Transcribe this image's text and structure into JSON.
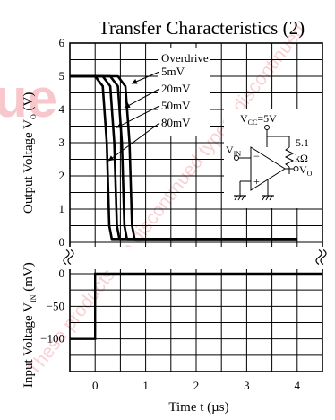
{
  "chart_data": {
    "type": "line",
    "title": "Transfer Characteristics (2)",
    "xlabel": "Time  t (µs)",
    "ylabel_output": "Output Voltage  V",
    "ylabel_output_sub": "O",
    "ylabel_output_unit": " (V)",
    "ylabel_input": "Input Voltage  V",
    "ylabel_input_sub": "IN",
    "ylabel_input_unit": " (mV)",
    "x_ticks": [
      "0",
      "1",
      "2",
      "3",
      "4"
    ],
    "y_output_ticks": [
      "6",
      "5",
      "4",
      "3",
      "2",
      "1",
      "0"
    ],
    "y_input_ticks": [
      "0",
      "−50",
      "−100"
    ],
    "xlim": [
      -0.5,
      4.5
    ],
    "ylim_output": [
      0,
      6
    ],
    "ylim_input": [
      -150,
      0
    ],
    "grid": true,
    "legend_title": "Overdrive",
    "series": [
      {
        "name": "5mV",
        "points": [
          [
            -0.5,
            5
          ],
          [
            0.45,
            5
          ],
          [
            0.6,
            4.7
          ],
          [
            0.68,
            3.0
          ],
          [
            0.73,
            0.5
          ],
          [
            0.78,
            0.1
          ],
          [
            4.0,
            0.1
          ]
        ]
      },
      {
        "name": "20mV",
        "points": [
          [
            -0.5,
            5
          ],
          [
            0.3,
            5
          ],
          [
            0.45,
            4.7
          ],
          [
            0.53,
            3.0
          ],
          [
            0.58,
            0.5
          ],
          [
            0.63,
            0.1
          ],
          [
            4.0,
            0.1
          ]
        ]
      },
      {
        "name": "50mV",
        "points": [
          [
            -0.5,
            5
          ],
          [
            0.15,
            5
          ],
          [
            0.3,
            4.7
          ],
          [
            0.38,
            3.0
          ],
          [
            0.43,
            0.5
          ],
          [
            0.48,
            0.1
          ],
          [
            4.0,
            0.1
          ]
        ]
      },
      {
        "name": "80mV",
        "points": [
          [
            -0.5,
            5
          ],
          [
            0.0,
            5
          ],
          [
            0.15,
            4.7
          ],
          [
            0.23,
            3.0
          ],
          [
            0.28,
            0.5
          ],
          [
            0.33,
            0.1
          ],
          [
            4.0,
            0.1
          ]
        ]
      }
    ],
    "input_waveform": [
      [
        -0.5,
        -100
      ],
      [
        0.0,
        -100
      ],
      [
        0.0,
        0
      ],
      [
        4.5,
        0
      ]
    ],
    "legend_arrow_targets": [
      [
        0.72,
        4.78
      ],
      [
        0.58,
        4.05
      ],
      [
        0.42,
        3.45
      ],
      [
        0.26,
        2.45
      ]
    ],
    "circuit": {
      "vcc_label": "V",
      "vcc_sub": "CC",
      "vcc_value": "=5V",
      "resistor_value": "5.1",
      "resistor_unit": "kΩ",
      "vin_label": "V",
      "vin_sub": "IN",
      "vo_label": "V",
      "vo_sub": "O",
      "minus_sign": "−",
      "plus_sign": "+"
    },
    "watermark": "These products are discontinued types; discontinued"
  }
}
